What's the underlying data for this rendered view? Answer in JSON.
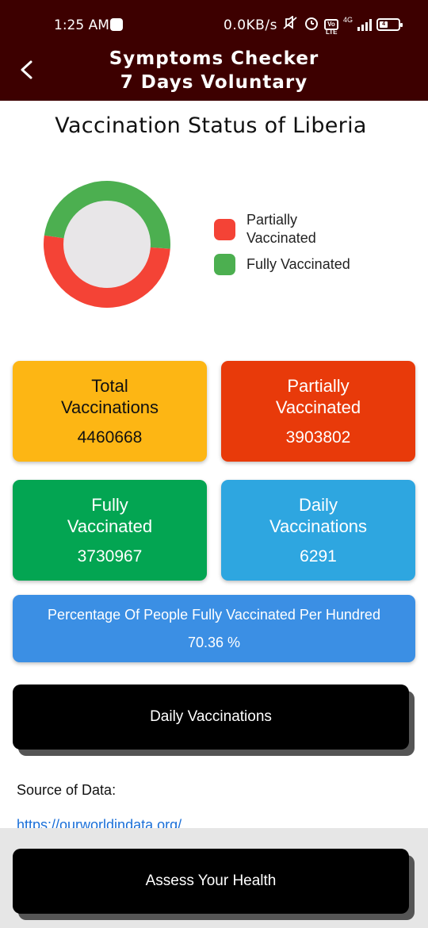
{
  "status_bar": {
    "time": "1:25 AM",
    "network_speed": "0.0KB/s",
    "network_type": "4G",
    "volte": "Vo LTE",
    "battery_level": "4"
  },
  "app_bar": {
    "title_line1": "Symptoms Checker",
    "title_line2": "7 Days Voluntary"
  },
  "page_title": "Vaccination Status of Liberia",
  "chart_data": {
    "type": "pie",
    "style": "donut",
    "series": [
      {
        "name": "Partially Vaccinated",
        "value": 3903802,
        "color": "#f44336"
      },
      {
        "name": "Fully Vaccinated",
        "value": 3730967,
        "color": "#4caf50"
      }
    ],
    "legend_position": "right"
  },
  "legend": {
    "partially": "Partially Vaccinated",
    "fully": "Fully Vaccinated"
  },
  "cards": {
    "total": {
      "title": "Total Vaccinations",
      "value": "4460668",
      "color": "#fdb614"
    },
    "partially": {
      "title": "Partially Vaccinated",
      "value": "3903802",
      "color": "#e83a0a"
    },
    "fully": {
      "title": "Fully Vaccinated",
      "value": "3730967",
      "color": "#03a552"
    },
    "daily": {
      "title": "Daily Vaccinations",
      "value": "6291",
      "color": "#2ea6e0"
    }
  },
  "percentage_card": {
    "title": "Percentage Of People Fully Vaccinated Per Hundred",
    "value": "70.36 %"
  },
  "buttons": {
    "daily_vaccinations": "Daily Vaccinations",
    "assess_health": "Assess Your Health"
  },
  "source": {
    "label": "Source of Data:",
    "link": "https://ourworldindata.org/"
  },
  "icons": {
    "back": "arrow-back-icon",
    "notification": "notification-icon",
    "mute": "mute-icon",
    "alarm": "alarm-icon",
    "signal": "signal-icon",
    "battery": "battery-icon"
  }
}
